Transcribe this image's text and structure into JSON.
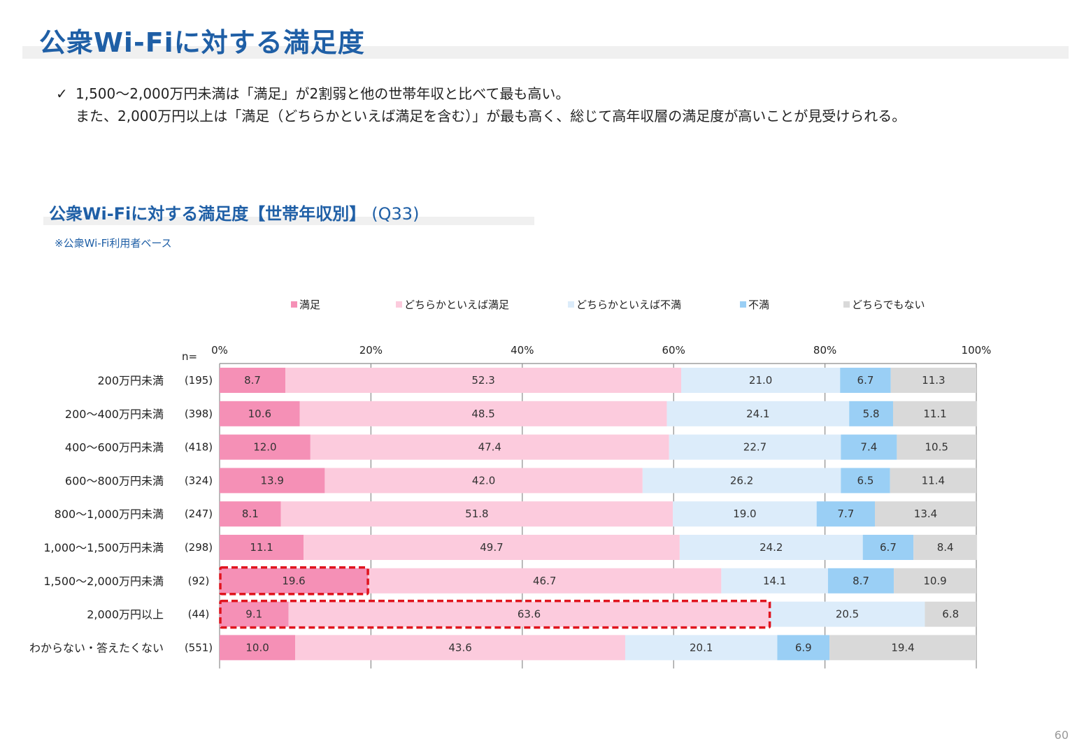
{
  "page": {
    "title": "公衆Wi-Fiに対する満足度",
    "bullet_check": "✓",
    "bullet_line1": "1,500～2,000万円未満は「満足」が2割弱と他の世帯年収と比べて最も高い。",
    "bullet_line2": "また、2,000万円以上は「満足（どちらかといえば満足を含む）」が最も高く、総じて高年収層の満足度が高いことが見受けられる。",
    "chart_title": "公衆Wi-Fiに対する満足度【世帯年収別】",
    "chart_code": "(Q33)",
    "base_note": "※公衆Wi-Fi利用者ベース",
    "page_number": "60"
  },
  "chart_data": {
    "type": "bar",
    "orientation": "horizontal",
    "stacked": "percent",
    "n_label": "n=",
    "xlim": [
      0,
      100
    ],
    "x_ticks": [
      "0%",
      "20%",
      "40%",
      "60%",
      "80%",
      "100%"
    ],
    "legend_position": "top",
    "categories": [
      "200万円未満",
      "200～400万円未満",
      "400～600万円未満",
      "600～800万円未満",
      "800～1,000万円未満",
      "1,000～1,500万円未満",
      "1,500～2,000万円未満",
      "2,000万円以上",
      "わからない・答えたくない"
    ],
    "n": [
      "(195)",
      "(398)",
      "(418)",
      "(324)",
      "(247)",
      "(298)",
      "(92)",
      "(44)",
      "(551)"
    ],
    "series": [
      {
        "name": "満足",
        "color": "#f590b6",
        "values": [
          8.7,
          10.6,
          12.0,
          13.9,
          8.1,
          11.1,
          19.6,
          9.1,
          10.0
        ]
      },
      {
        "name": "どちらかといえば満足",
        "color": "#fccbdd",
        "values": [
          52.3,
          48.5,
          47.4,
          42.0,
          51.8,
          49.7,
          46.7,
          63.6,
          43.6
        ]
      },
      {
        "name": "どちらかといえば不満",
        "color": "#dcecfa",
        "values": [
          21.0,
          24.1,
          22.7,
          26.2,
          19.0,
          24.2,
          14.1,
          20.5,
          20.1
        ]
      },
      {
        "name": "不満",
        "color": "#9acff5",
        "values": [
          6.7,
          5.8,
          7.4,
          6.5,
          7.7,
          6.7,
          8.7,
          null,
          6.9
        ]
      },
      {
        "name": "どちらでもない",
        "color": "#d9d9d9",
        "values": [
          11.3,
          11.1,
          10.5,
          11.4,
          13.4,
          8.4,
          10.9,
          6.8,
          19.4
        ]
      }
    ],
    "highlights": [
      {
        "row": 6,
        "from": 0,
        "to": 19.6
      },
      {
        "row": 7,
        "from": 0,
        "to": 72.7
      }
    ],
    "highlight_color": "#e0141e"
  }
}
